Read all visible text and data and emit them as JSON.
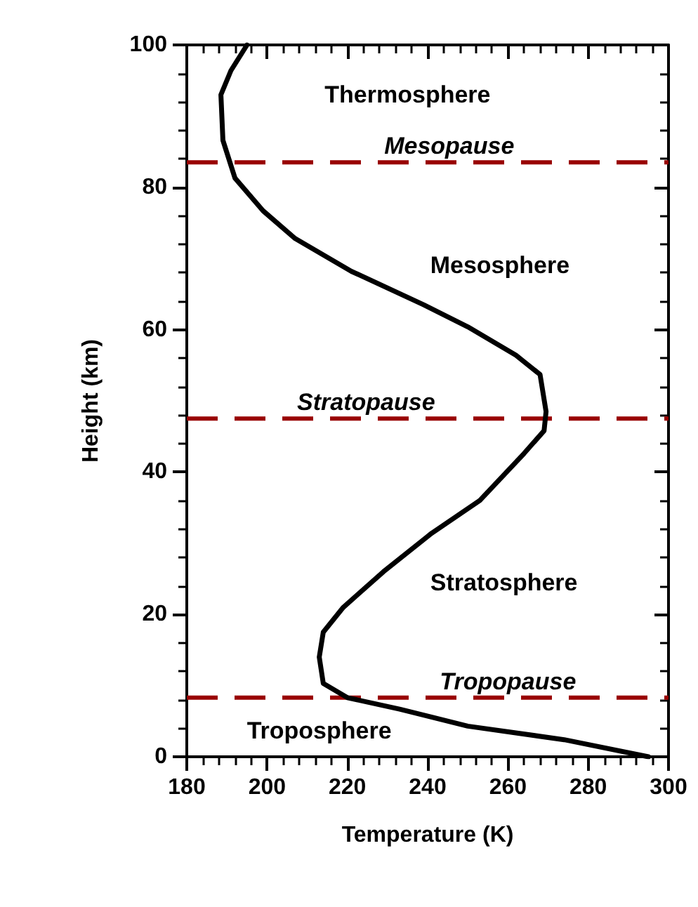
{
  "chart_data": {
    "type": "line",
    "xlabel": "Temperature (K)",
    "ylabel": "Height (km)",
    "xlim": [
      180,
      300
    ],
    "xticks": [
      180,
      200,
      220,
      240,
      260,
      280,
      300
    ],
    "ylim": [
      0,
      100
    ],
    "yticks": [
      0,
      20,
      40,
      60,
      80,
      100
    ],
    "grid": false,
    "marker": "none",
    "line_style": "solid",
    "series": [
      {
        "color": "#000000",
        "x": [
          295,
          274,
          250,
          233,
          220,
          214,
          213,
          214,
          219,
          229,
          241,
          253,
          264,
          269,
          269.5,
          268,
          262,
          250,
          239,
          221,
          207,
          199,
          192,
          189,
          188.5,
          191,
          195
        ],
        "values": [
          0,
          2.4,
          4.3,
          6.7,
          8.3,
          10.3,
          14,
          17.5,
          21,
          26,
          31.4,
          36,
          42.6,
          45.8,
          48.5,
          53.7,
          56.4,
          60.4,
          63.5,
          68.2,
          72.8,
          76.7,
          81.3,
          86.6,
          93,
          96.4,
          100
        ]
      }
    ],
    "ref_lines": [
      {
        "axis": "y",
        "value": 83.5,
        "label": "Mesopause",
        "color": "#990000",
        "line_style": "dashed"
      },
      {
        "axis": "y",
        "value": 47.5,
        "label": "Stratopause",
        "color": "#990000",
        "line_style": "dashed"
      },
      {
        "axis": "y",
        "value": 8.3,
        "label": "Tropopause",
        "color": "#990000",
        "line_style": "dashed"
      }
    ],
    "annotations": [
      "Thermosphere",
      "Mesosphere",
      "Stratosphere",
      "Troposphere"
    ]
  }
}
